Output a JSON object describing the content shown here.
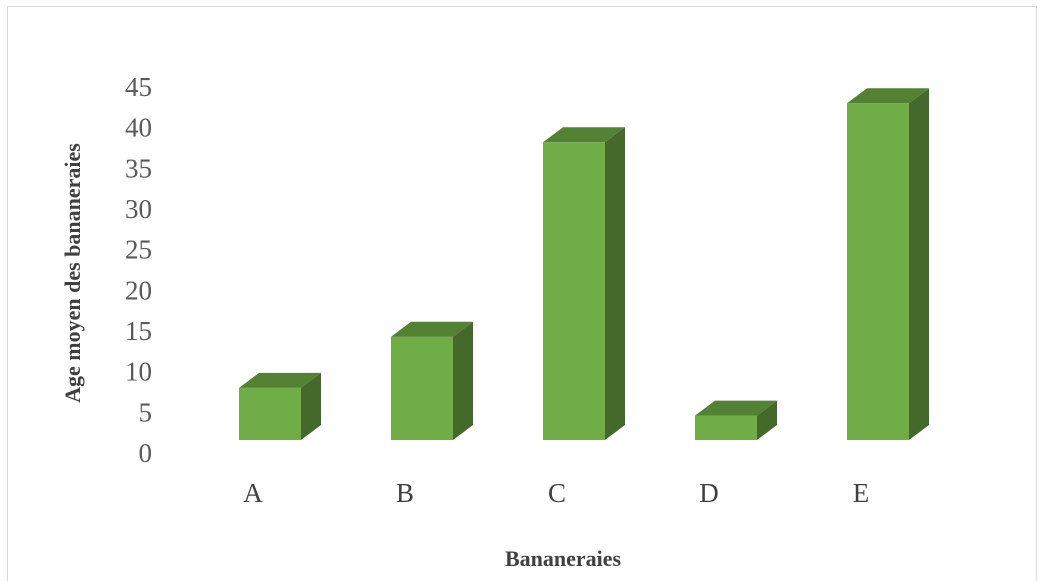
{
  "chart_data": {
    "type": "bar",
    "categories": [
      "A",
      "B",
      "C",
      "D",
      "E"
    ],
    "values": [
      8,
      14.3,
      38.2,
      4.6,
      43
    ],
    "title": "",
    "xlabel": "Bananeraies",
    "ylabel": "Age moyen des bananeraies",
    "ylim": [
      0,
      45
    ],
    "yticks": [
      0,
      5,
      10,
      15,
      20,
      25,
      30,
      35,
      40,
      45
    ],
    "grid": false,
    "legend": "none",
    "colors": {
      "front": "#70ad47",
      "top": "#548235",
      "side": "#44692b"
    }
  }
}
